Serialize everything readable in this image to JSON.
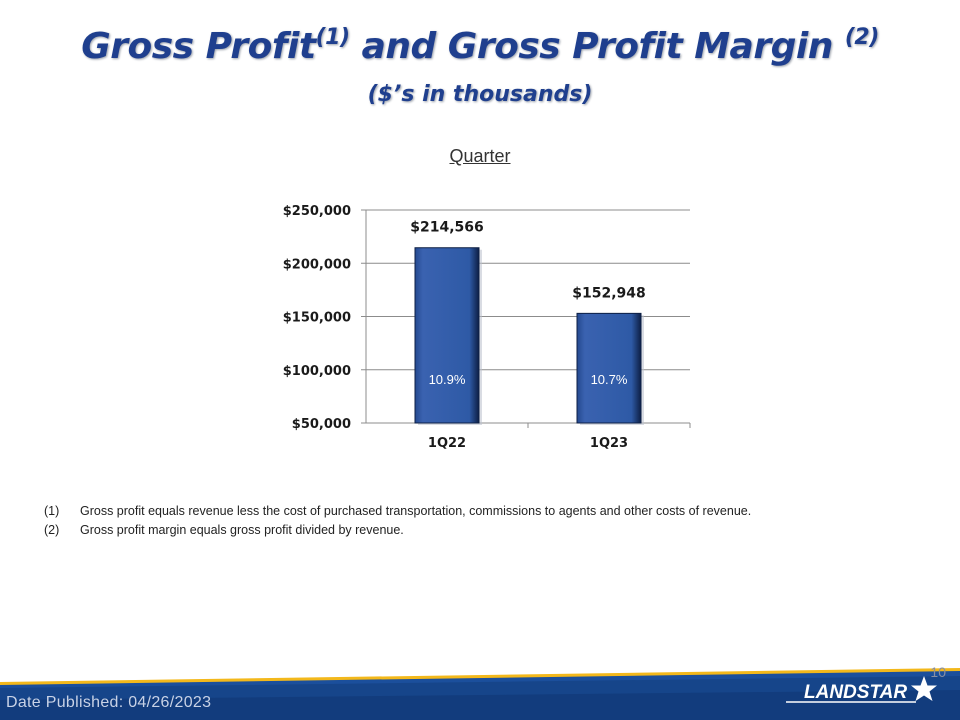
{
  "header": {
    "title_part1": "Gross Profit",
    "title_sup1": "(1)",
    "title_part2": " and Gross Profit Margin ",
    "title_sup2": "(2)",
    "subtitle": "($’s in thousands)"
  },
  "chart_label": "Quarter",
  "chart_data": {
    "type": "bar",
    "title": "Quarter",
    "categories": [
      "1Q22",
      "1Q23"
    ],
    "values": [
      214566,
      152948
    ],
    "value_labels": [
      "$214,566",
      "$152,948"
    ],
    "margins": [
      "10.9%",
      "10.7%"
    ],
    "y_ticks": [
      50000,
      100000,
      150000,
      200000,
      250000
    ],
    "y_tick_labels": [
      "$50,000",
      "$100,000",
      "$150,000",
      "$200,000",
      "$250,000"
    ],
    "ylim": [
      50000,
      250000
    ],
    "grid": true,
    "xlabel": "",
    "ylabel": ""
  },
  "footnotes": [
    {
      "num": "(1)",
      "text": "Gross profit equals revenue less the cost of purchased transportation, commissions to agents and other costs of revenue."
    },
    {
      "num": "(2)",
      "text": "Gross profit margin equals gross profit divided by revenue."
    }
  ],
  "footer": {
    "date": "Date Published:  04/26/2023",
    "page_number": "10",
    "logo_text": "LANDSTAR"
  },
  "colors": {
    "title": "#1f3f8e",
    "bar": "#2e5aa6",
    "bar_dark": "#0d1f45",
    "footer_band": "#1b4f9c",
    "accent_gold": "#f3b81b"
  }
}
